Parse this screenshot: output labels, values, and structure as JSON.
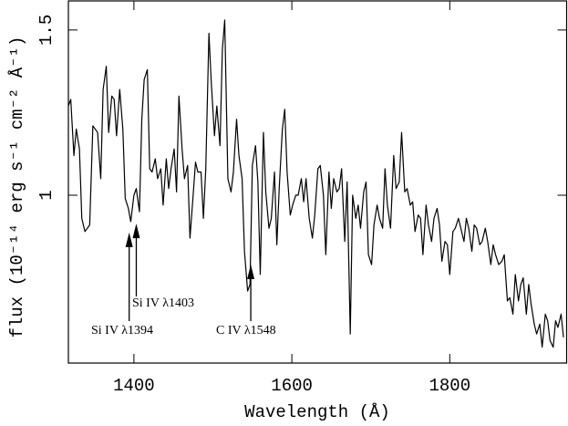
{
  "chart_data": {
    "type": "line",
    "xlabel": "Wavelength (Å)",
    "ylabel": "flux (10⁻¹⁴ erg s⁻¹ cm⁻² Å⁻¹)",
    "xlim": [
      1317,
      1948
    ],
    "ylim": [
      0.492,
      1.588
    ],
    "xticks": [
      1400,
      1600,
      1800
    ],
    "yticks": [
      1,
      1.5
    ],
    "color": "#000000",
    "annotations": [
      {
        "text": "Si IV λ1394",
        "x": 1394,
        "y": 0.887
      },
      {
        "text": "Si IV λ1403",
        "x": 1403,
        "y": 0.914
      },
      {
        "text": "C IV λ1548",
        "x": 1548,
        "y": 0.79
      }
    ],
    "x": [
      1317,
      1320,
      1324,
      1327,
      1331,
      1334,
      1338,
      1341,
      1344,
      1348,
      1351,
      1354,
      1358,
      1361,
      1365,
      1368,
      1372,
      1375,
      1378,
      1382,
      1386,
      1389,
      1393,
      1396,
      1400,
      1403,
      1407,
      1410,
      1413,
      1417,
      1420,
      1423,
      1427,
      1430,
      1434,
      1437,
      1441,
      1444,
      1447,
      1451,
      1454,
      1457,
      1461,
      1464,
      1468,
      1471,
      1475,
      1478,
      1481,
      1485,
      1488,
      1491,
      1495,
      1498,
      1502,
      1505,
      1509,
      1512,
      1515,
      1519,
      1523,
      1526,
      1530,
      1533,
      1537,
      1540,
      1544,
      1547,
      1550,
      1554,
      1557,
      1560,
      1564,
      1567,
      1571,
      1574,
      1578,
      1581,
      1584,
      1588,
      1591,
      1594,
      1598,
      1601,
      1605,
      1608,
      1612,
      1615,
      1618,
      1622,
      1626,
      1629,
      1633,
      1636,
      1640,
      1643,
      1647,
      1650,
      1653,
      1657,
      1660,
      1663,
      1667,
      1670,
      1674,
      1677,
      1681,
      1684,
      1687,
      1691,
      1694,
      1697,
      1701,
      1704,
      1708,
      1711,
      1715,
      1718,
      1721,
      1725,
      1729,
      1732,
      1736,
      1739,
      1743,
      1746,
      1750,
      1753,
      1756,
      1760,
      1763,
      1766,
      1770,
      1773,
      1777,
      1780,
      1784,
      1787,
      1790,
      1794,
      1797,
      1800,
      1804,
      1807,
      1811,
      1814,
      1818,
      1821,
      1824,
      1828,
      1831,
      1834,
      1838,
      1841,
      1845,
      1848,
      1852,
      1855,
      1858,
      1862,
      1866,
      1869,
      1873,
      1876,
      1880,
      1883,
      1887,
      1890,
      1893,
      1897,
      1900,
      1903,
      1907,
      1910,
      1914,
      1917,
      1921,
      1924,
      1927,
      1931,
      1934,
      1937,
      1941,
      1944
    ],
    "values": [
      1.27,
      1.29,
      1.12,
      1.2,
      1.14,
      0.93,
      0.89,
      0.9,
      0.91,
      1.21,
      1.2,
      1.19,
      1.05,
      1.32,
      1.39,
      1.19,
      1.3,
      1.29,
      1.18,
      1.32,
      1.2,
      0.99,
      0.96,
      0.92,
      1.0,
      1.02,
      0.95,
      1.23,
      1.35,
      1.38,
      1.08,
      1.07,
      1.11,
      1.05,
      1.08,
      0.97,
      1.11,
      1.02,
      1.08,
      1.14,
      1.01,
      1.3,
      1.14,
      1.05,
      1.09,
      0.87,
      1.0,
      1.1,
      1.07,
      1.07,
      0.93,
      1.08,
      1.49,
      1.34,
      1.18,
      1.27,
      1.15,
      1.44,
      1.53,
      1.05,
      1.01,
      1.07,
      1.23,
      1.12,
      1.05,
      0.83,
      0.71,
      0.73,
      1.09,
      1.15,
      1.04,
      0.76,
      1.19,
      1.01,
      0.9,
      0.93,
      1.07,
      0.85,
      1.02,
      1.2,
      1.26,
      1.07,
      0.94,
      0.97,
      1.0,
      1.0,
      1.05,
      0.98,
      1.05,
      0.93,
      0.87,
      0.94,
      1.08,
      1.09,
      1.0,
      0.82,
      1.07,
      0.96,
      1.05,
      1.01,
      1.02,
      1.08,
      0.86,
      1.04,
      0.58,
      1.0,
      0.93,
      0.97,
      0.9,
      1.01,
      1.04,
      0.82,
      0.79,
      0.91,
      0.97,
      0.93,
      0.9,
      1.08,
      0.97,
      0.9,
      1.12,
      1.02,
      1.04,
      1.19,
      1.01,
      1.02,
      0.97,
      0.98,
      0.89,
      0.94,
      0.93,
      0.82,
      0.97,
      0.91,
      0.86,
      0.93,
      0.96,
      0.91,
      0.8,
      0.86,
      0.85,
      0.76,
      0.89,
      0.9,
      0.93,
      0.9,
      0.86,
      0.93,
      0.9,
      0.83,
      0.91,
      0.9,
      0.85,
      0.86,
      0.9,
      0.86,
      0.79,
      0.85,
      0.82,
      0.79,
      0.8,
      0.82,
      0.68,
      0.69,
      0.64,
      0.76,
      0.68,
      0.73,
      0.75,
      0.64,
      0.73,
      0.67,
      0.61,
      0.58,
      0.61,
      0.54,
      0.64,
      0.62,
      0.56,
      0.54,
      0.62,
      0.6,
      0.64,
      0.57
    ]
  }
}
